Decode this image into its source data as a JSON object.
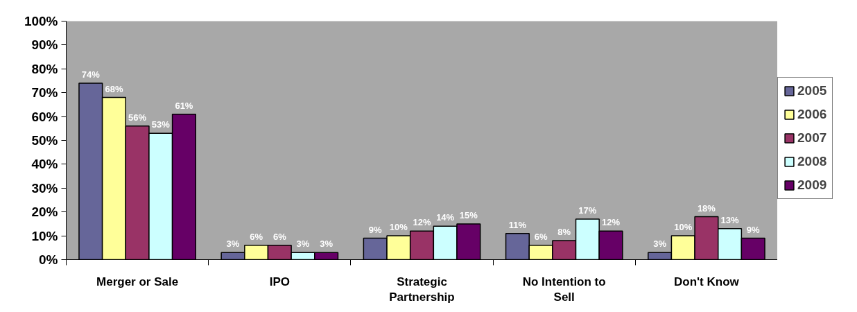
{
  "chart_data": {
    "type": "bar",
    "categories": [
      "Merger or Sale",
      "IPO",
      "Strategic Partnership",
      "No Intention to Sell",
      "Don't Know"
    ],
    "series": [
      {
        "name": "2005",
        "color": "#666699",
        "values": [
          74,
          3,
          9,
          11,
          3
        ],
        "value_labels": [
          "74%",
          "3%",
          "9%",
          "11%",
          "3%"
        ]
      },
      {
        "name": "2006",
        "color": "#ffff99",
        "values": [
          68,
          6,
          10,
          6,
          10
        ],
        "value_labels": [
          "68%",
          "6%",
          "10%",
          "6%",
          "10%"
        ]
      },
      {
        "name": "2007",
        "color": "#993366",
        "values": [
          56,
          6,
          12,
          8,
          18
        ],
        "value_labels": [
          "56%",
          "6%",
          "12%",
          "8%",
          "18%"
        ]
      },
      {
        "name": "2008",
        "color": "#ccffff",
        "values": [
          53,
          3,
          14,
          17,
          13
        ],
        "value_labels": [
          "53%",
          "3%",
          "14%",
          "17%",
          "13%"
        ]
      },
      {
        "name": "2009",
        "color": "#660066",
        "values": [
          61,
          3,
          15,
          12,
          9
        ],
        "value_labels": [
          "61%",
          "3%",
          "15%",
          "12%",
          "9%"
        ]
      }
    ],
    "ylim": [
      0,
      100
    ],
    "yticks": [
      {
        "value": 0,
        "label": "0%"
      },
      {
        "value": 10,
        "label": "10%"
      },
      {
        "value": 20,
        "label": "20%"
      },
      {
        "value": 30,
        "label": "30%"
      },
      {
        "value": 40,
        "label": "40%"
      },
      {
        "value": 50,
        "label": "50%"
      },
      {
        "value": 60,
        "label": "60%"
      },
      {
        "value": 70,
        "label": "70%"
      },
      {
        "value": 80,
        "label": "80%"
      },
      {
        "value": 90,
        "label": "90%"
      },
      {
        "value": 100,
        "label": "100%"
      }
    ],
    "grid": false,
    "legend": "right"
  }
}
